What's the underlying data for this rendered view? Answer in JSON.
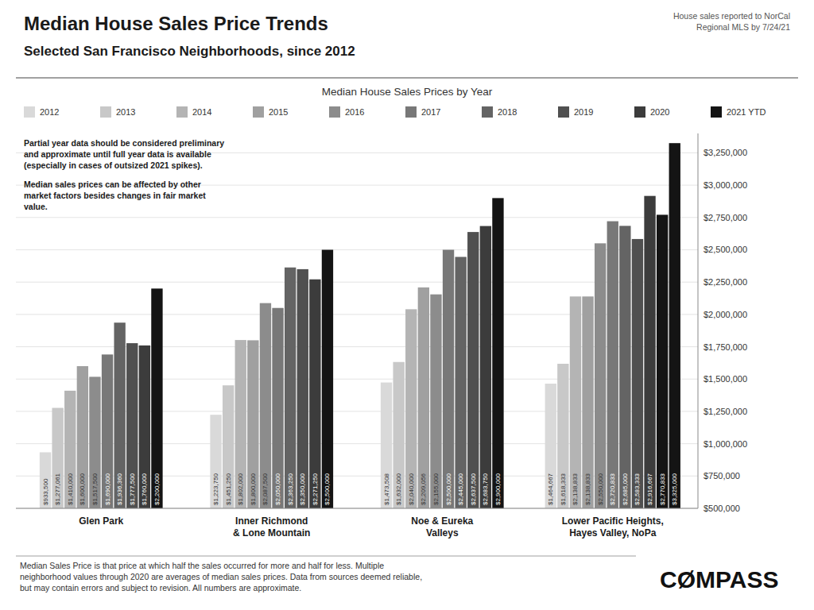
{
  "chart_data": {
    "type": "bar",
    "title": "Median House Sales Price Trends",
    "subtitle": "Selected San Francisco Neighborhoods, since 2012",
    "source_note": "House sales reported to NorCal\nRegional MLS by 7/24/21",
    "legend_title": "Median House Sales Prices by Year",
    "annotations": [
      "Partial year data should be considered preliminary\nand approximate until full year data is available\n(especially in cases of outsized 2021 spikes).",
      "Median sales prices can be affected by other\nmarket factors besides changes in fair market\nvalue."
    ],
    "footer": "Median Sales Price is that price at which half the sales occurred for more and half for less.  Multiple\nneighborhood values through 2020 are averages of median sales prices. Data from sources deemed reliable,\nbut may contain errors and subject to revision.  All numbers are approximate.",
    "logo": "CØMPASS",
    "categories": [
      "Glen Park",
      "Inner Richmond\n& Lone Mountain",
      "Noe & Eureka\nValleys",
      "Lower Pacific Heights,\nHayes Valley, NoPa"
    ],
    "series": [
      {
        "name": "2012",
        "color": "#d9d9d9",
        "values": [
          933500,
          1223750,
          1473508,
          1464667
        ],
        "value_labels": [
          "$933,500",
          "$1,223,750",
          "$1,473,508",
          "$1,464,667"
        ]
      },
      {
        "name": "2013",
        "color": "#c8c8c8",
        "values": [
          1277061,
          1451250,
          1632000,
          1618333
        ],
        "value_labels": [
          "$1,277,061",
          "$1,451,250",
          "$1,632,000",
          "$1,618,333"
        ]
      },
      {
        "name": "2014",
        "color": "#b4b4b4",
        "values": [
          1410000,
          1802000,
          2040000,
          2138833
        ],
        "value_labels": [
          "$1,410,000",
          "$1,802,000",
          "$2,040,000",
          "$2,138,833"
        ]
      },
      {
        "name": "2015",
        "color": "#a0a0a0",
        "values": [
          1600000,
          1800000,
          2209056,
          2138833
        ],
        "value_labels": [
          "$1,600,000",
          "$1,800,000",
          "$2,209,056",
          "$2,138,833"
        ]
      },
      {
        "name": "2016",
        "color": "#8c8c8c",
        "values": [
          1517500,
          2087500,
          2155000,
          2550000
        ],
        "value_labels": [
          "$1,517,500",
          "$2,087,500",
          "$2,155,000",
          "$2,550,000"
        ]
      },
      {
        "name": "2017",
        "color": "#787878",
        "values": [
          1690000,
          2050000,
          2500000,
          2720833
        ],
        "value_labels": [
          "$1,690,000",
          "$2,050,000",
          "$2,500,000",
          "$2,720,833"
        ]
      },
      {
        "name": "2018",
        "color": "#646464",
        "values": [
          1936360,
          2363250,
          2445000,
          2685000
        ],
        "value_labels": [
          "$1,936,360",
          "$2,363,250",
          "$2,445,000",
          "$2,685,000"
        ]
      },
      {
        "name": "2019",
        "color": "#505050",
        "values": [
          1777500,
          2350000,
          2637500,
          2583333
        ],
        "value_labels": [
          "$1,777,500",
          "$2,350,000",
          "$2,637,500",
          "$2,583,333"
        ]
      },
      {
        "name": "2020",
        "color": "#3c3c3c",
        "values": [
          1760000,
          2271250,
          2683750,
          2916667
        ],
        "value_labels": [
          "$1,760,000",
          "$2,271,250",
          "$2,683,750",
          "$2,916,667"
        ]
      },
      {
        "name": "2021 YTD",
        "color": "#141414",
        "values": [
          2200000,
          2500000,
          2900000,
          2770833
        ],
        "value_labels": [
          "$2,200,000",
          "$2,500,000",
          "$2,900,000",
          "$2,770,833"
        ]
      },
      {
        "color": "#141414",
        "values": [
          null,
          null,
          null,
          3325000
        ],
        "value_labels": [
          null,
          null,
          null,
          "$3,325,000"
        ]
      }
    ],
    "ylim": [
      500000,
      3400000
    ],
    "yticks": [
      {
        "value": 500000,
        "label": "$500,000"
      },
      {
        "value": 750000,
        "label": "$750,000"
      },
      {
        "value": 1000000,
        "label": "$1,000,000"
      },
      {
        "value": 1250000,
        "label": "$1,250,000"
      },
      {
        "value": 1500000,
        "label": "$1,500,000"
      },
      {
        "value": 1750000,
        "label": "$1,750,000"
      },
      {
        "value": 2000000,
        "label": "$2,000,000"
      },
      {
        "value": 2250000,
        "label": "$2,250,000"
      },
      {
        "value": 2500000,
        "label": "$2,500,000"
      },
      {
        "value": 2750000,
        "label": "$2,750,000"
      },
      {
        "value": 3000000,
        "label": "$3,000,000"
      },
      {
        "value": 3250000,
        "label": "$3,250,000"
      }
    ],
    "grid": true,
    "legend": "top",
    "data_labels": true
  }
}
